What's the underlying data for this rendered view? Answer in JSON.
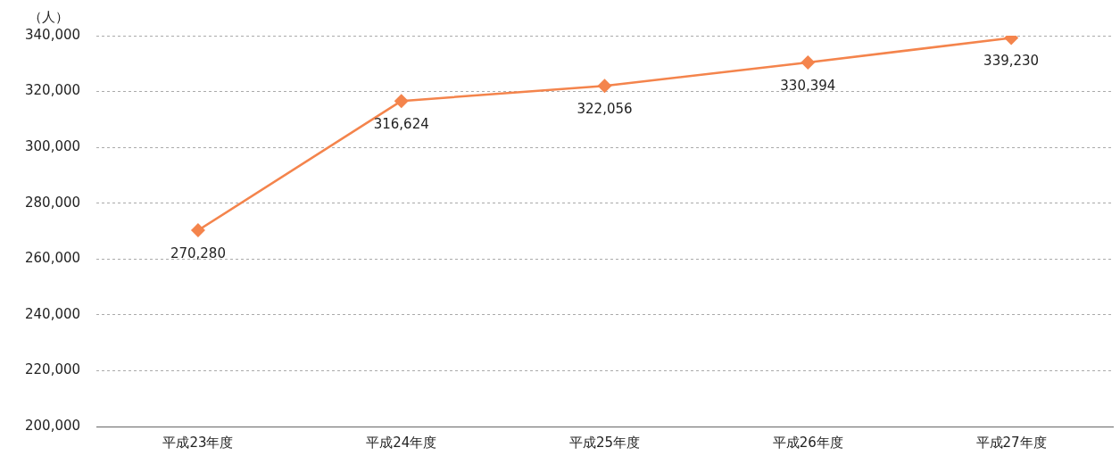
{
  "chart_data": {
    "type": "line",
    "ylabel": "（人）",
    "categories": [
      "平成23年度",
      "平成24年度",
      "平成25年度",
      "平成26年度",
      "平成27年度"
    ],
    "series": [
      {
        "color": "#f4844c",
        "values": [
          270280,
          316624,
          322056,
          330394,
          339230
        ],
        "value_labels": [
          "270,280",
          "316,624",
          "322,056",
          "330,394",
          "339,230"
        ]
      }
    ],
    "ylim": [
      200000,
      340000
    ],
    "yticks": [
      {
        "value": 200000,
        "label": "200,000"
      },
      {
        "value": 220000,
        "label": "220,000"
      },
      {
        "value": 240000,
        "label": "240,000"
      },
      {
        "value": 260000,
        "label": "260,000"
      },
      {
        "value": 280000,
        "label": "280,000"
      },
      {
        "value": 300000,
        "label": "300,000"
      },
      {
        "value": 320000,
        "label": "320,000"
      },
      {
        "value": 340000,
        "label": "340,000"
      }
    ],
    "grid": "y",
    "legend": false,
    "marker": "diamond",
    "line_style": "solid"
  }
}
